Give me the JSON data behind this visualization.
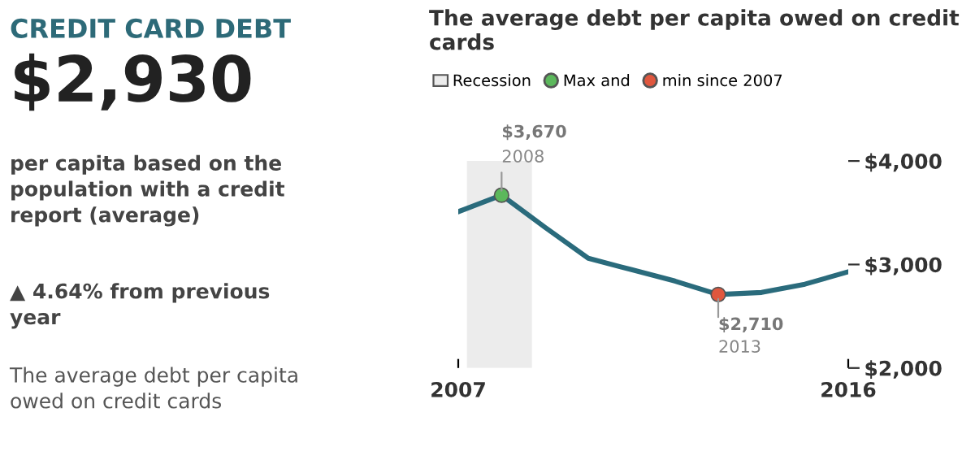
{
  "chart_data": [
    {
      "type": "other",
      "title": "CREDIT CARD DEBT",
      "annotations": [
        "$2,930",
        "per capita based on the population with a credit report (average)",
        "▲ 4.64% from previous year",
        "The average debt per capita owed on credit cards"
      ]
    },
    {
      "type": "line",
      "title": "The average debt per capita owed on credit cards",
      "x": [
        2007,
        2008,
        2009,
        2010,
        2011,
        2012,
        2013,
        2014,
        2015,
        2016
      ],
      "series": [
        {
          "color": "#2a6b7c",
          "values": [
            3510,
            3670,
            3360,
            3060,
            2950,
            2840,
            2710,
            2730,
            2810,
            2930
          ]
        },
        {
          "name": "Max and",
          "type": "scatter",
          "color": "#5cb85c",
          "x": [
            2008
          ],
          "values": [
            3670
          ],
          "value_labels": [
            "$3,670"
          ]
        },
        {
          "name": "min since 2007",
          "type": "scatter",
          "color": "#e0573e",
          "x": [
            2013
          ],
          "values": [
            2710
          ],
          "value_labels": [
            "$2,710"
          ]
        }
      ],
      "bands": [
        {
          "axis": "x",
          "from": 2007.2,
          "to": 2008.7,
          "label": "Recession",
          "color": "#ececec"
        }
      ],
      "annotations": [
        "2008",
        "2013"
      ],
      "xlim": [
        2007,
        2016
      ],
      "xticks": [
        2007,
        2016
      ],
      "ylim": [
        2000,
        4000
      ],
      "yticks": [
        {
          "value": 2000,
          "label": "$2,000"
        },
        {
          "value": 3000,
          "label": "$3,000"
        },
        {
          "value": 4000,
          "label": "$4,000"
        }
      ],
      "legend": "top left",
      "grid": false
    }
  ]
}
